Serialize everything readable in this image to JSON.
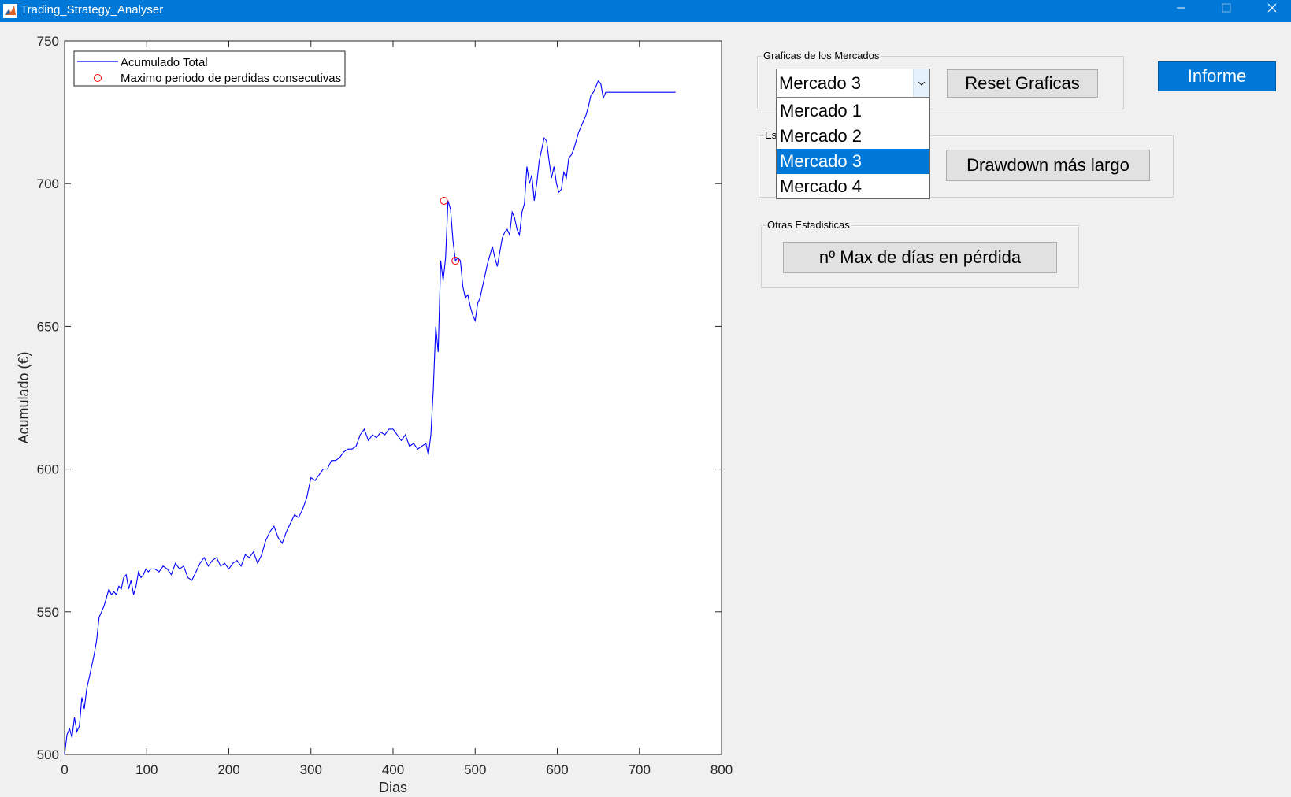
{
  "window": {
    "title": "Trading_Strategy_Analyser",
    "minimize_glyph": "—",
    "maximize_glyph": "☐",
    "close_glyph": "✕"
  },
  "panels": {
    "markets": {
      "title": "Graficas de los Mercados",
      "dropdown": {
        "selected": "Mercado 3",
        "options": [
          "Mercado 1",
          "Mercado 2",
          "Mercado 3",
          "Mercado 4"
        ],
        "selected_index": 2
      },
      "reset_button": "Reset Graficas"
    },
    "estadisticas": {
      "title": "Es",
      "drawdown_button": "Drawdown más largo"
    },
    "otras": {
      "title": "Otras Estadisticas",
      "maxdays_button": "nº Max de días en pérdida"
    }
  },
  "informe_button": "Informe",
  "colors": {
    "titlebar": "#0078d7",
    "line": "#0000ff",
    "marker": "#ff0000",
    "selected": "#0078d7"
  },
  "chart_data": {
    "type": "line",
    "xlabel": "Dias",
    "ylabel": "Acumulado (€)",
    "xlim": [
      0,
      800
    ],
    "ylim": [
      500,
      750
    ],
    "xticks": [
      0,
      100,
      200,
      300,
      400,
      500,
      600,
      700,
      800
    ],
    "yticks": [
      500,
      550,
      600,
      650,
      700,
      750
    ],
    "legend": {
      "placement": "top-left",
      "entries": [
        "Acumulado Total",
        "Maximo periodo de perdidas consecutivas"
      ]
    },
    "series": [
      {
        "name": "Acumulado Total",
        "x": [
          0,
          3,
          6,
          9,
          12,
          15,
          18,
          21,
          24,
          27,
          30,
          33,
          36,
          39,
          42,
          45,
          48,
          51,
          54,
          57,
          60,
          63,
          66,
          69,
          72,
          75,
          78,
          81,
          84,
          87,
          90,
          93,
          96,
          99,
          102,
          105,
          110,
          115,
          120,
          125,
          130,
          135,
          140,
          145,
          150,
          155,
          160,
          165,
          170,
          175,
          180,
          185,
          190,
          195,
          200,
          205,
          210,
          215,
          220,
          225,
          230,
          235,
          240,
          245,
          250,
          255,
          260,
          265,
          270,
          275,
          280,
          285,
          290,
          295,
          300,
          305,
          310,
          315,
          320,
          325,
          330,
          335,
          340,
          345,
          350,
          355,
          360,
          365,
          370,
          375,
          380,
          385,
          390,
          395,
          400,
          405,
          410,
          415,
          420,
          425,
          430,
          435,
          440,
          443,
          446,
          449,
          452,
          455,
          458,
          461,
          464,
          467,
          470,
          473,
          476,
          479,
          482,
          485,
          488,
          491,
          494,
          497,
          500,
          503,
          506,
          509,
          512,
          515,
          518,
          521,
          524,
          527,
          530,
          533,
          536,
          539,
          542,
          545,
          548,
          551,
          554,
          557,
          560,
          563,
          566,
          569,
          572,
          575,
          578,
          581,
          584,
          587,
          590,
          593,
          596,
          599,
          602,
          605,
          608,
          611,
          614,
          617,
          620,
          623,
          626,
          629,
          632,
          635,
          638,
          641,
          644,
          647,
          650,
          653,
          656,
          659,
          662,
          665,
          668,
          671,
          674,
          680,
          700,
          720,
          744
        ],
        "y": [
          500,
          507,
          509,
          506,
          513,
          508,
          510,
          520,
          516,
          523,
          527,
          531,
          535,
          540,
          548,
          550,
          552,
          555,
          558,
          556,
          557,
          556,
          559,
          558,
          562,
          563,
          558,
          561,
          556,
          559,
          564,
          562,
          563,
          565,
          564,
          565,
          565,
          564,
          566,
          565,
          563,
          567,
          565,
          566,
          562,
          561,
          564,
          567,
          569,
          566,
          568,
          569,
          566,
          567,
          565,
          567,
          568,
          566,
          570,
          569,
          571,
          567,
          570,
          575,
          578,
          580,
          576,
          574,
          578,
          581,
          584,
          583,
          586,
          590,
          597,
          596,
          598,
          600,
          600,
          603,
          603,
          604,
          606,
          607,
          607,
          608,
          612,
          614,
          610,
          612,
          611,
          613,
          612,
          614,
          614,
          612,
          610,
          612,
          608,
          609,
          607,
          608,
          609,
          605,
          612,
          628,
          650,
          641,
          673,
          666,
          674,
          694,
          691,
          680,
          673,
          674,
          673,
          664,
          660,
          661,
          657,
          654,
          652,
          658,
          660,
          664,
          668,
          672,
          675,
          678,
          674,
          671,
          676,
          681,
          683,
          684,
          682,
          690,
          688,
          684,
          682,
          690,
          693,
          706,
          700,
          703,
          694,
          700,
          708,
          712,
          716,
          715,
          708,
          702,
          706,
          700,
          697,
          698,
          704,
          702,
          709,
          710,
          712,
          715,
          718,
          720,
          722,
          724,
          727,
          731,
          732,
          734,
          736,
          735,
          730,
          732,
          732,
          732,
          732,
          732,
          732,
          732,
          732,
          732,
          732
        ]
      }
    ],
    "markers": {
      "name": "Maximo periodo de perdidas consecutivas",
      "points": [
        {
          "x": 462,
          "y": 694
        },
        {
          "x": 476,
          "y": 673
        }
      ]
    }
  }
}
